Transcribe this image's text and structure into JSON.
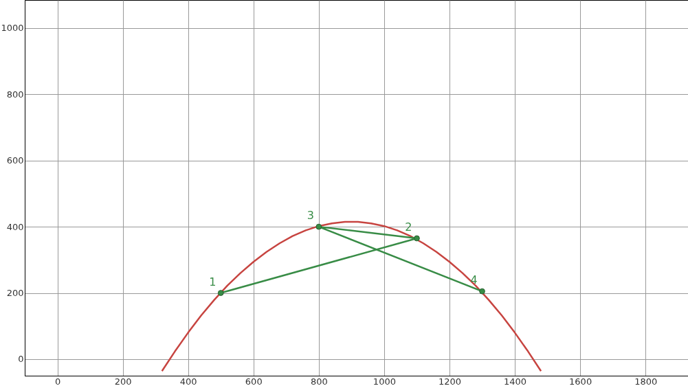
{
  "chart_data": {
    "type": "line",
    "xlim": [
      -100,
      1930
    ],
    "ylim": [
      -50,
      1085
    ],
    "xticks": [
      0,
      200,
      400,
      600,
      800,
      1000,
      1200,
      1400,
      1600,
      1800
    ],
    "yticks": [
      0,
      200,
      400,
      600,
      800,
      1000
    ],
    "grid": true,
    "line_style": "solid",
    "series": [
      {
        "color": "#c74440",
        "marker": "none",
        "x": [
          320,
          360,
          400,
          440,
          480,
          520,
          560,
          600,
          640,
          680,
          720,
          760,
          800,
          840,
          880,
          920,
          960,
          1000,
          1040,
          1080,
          1120,
          1160,
          1200,
          1240,
          1280,
          1320,
          1360,
          1400,
          1440,
          1480
        ],
        "values": [
          -36,
          24,
          80,
          132,
          179,
          222,
          260,
          294,
          324,
          350,
          372,
          389,
          402,
          410,
          415,
          415,
          410,
          402,
          389,
          372,
          350,
          324,
          294,
          260,
          222,
          179,
          132,
          80,
          24,
          -36
        ]
      },
      {
        "color": "#388c46",
        "marker": "circle",
        "x": [
          500,
          1100,
          800,
          1300
        ],
        "values": [
          200,
          365,
          400,
          205
        ]
      }
    ],
    "annotations": [
      {
        "text": "1",
        "x": 500,
        "y": 200
      },
      {
        "text": "2",
        "x": 1100,
        "y": 365
      },
      {
        "text": "3",
        "x": 800,
        "y": 400
      },
      {
        "text": "4",
        "x": 1300,
        "y": 205
      }
    ]
  }
}
